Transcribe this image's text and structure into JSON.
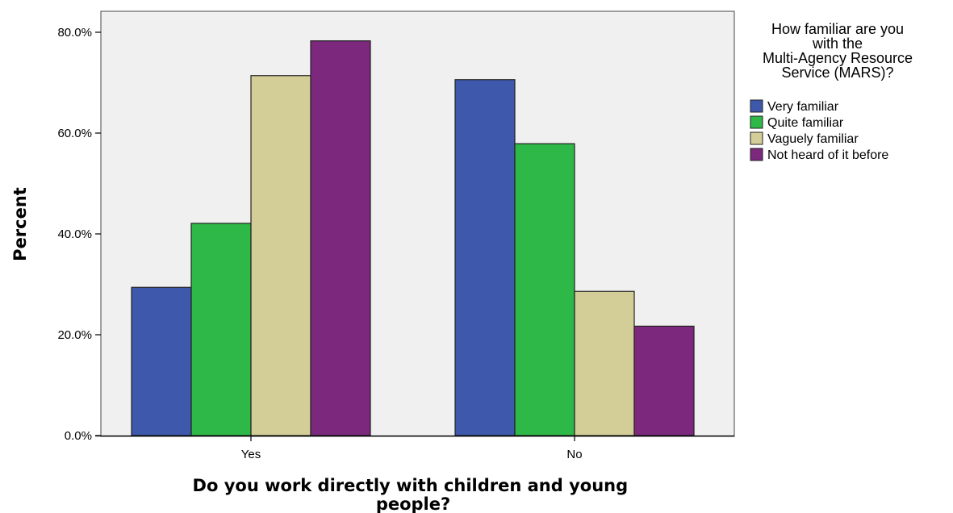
{
  "chart_data": {
    "type": "bar",
    "categories": [
      "Yes",
      "No"
    ],
    "xlabel": "Do you work directly with children and young people?",
    "ylabel": "Percent",
    "ylim": [
      0,
      80
    ],
    "yticks": [
      "0.0%",
      "20.0%",
      "40.0%",
      "60.0%",
      "80.0%"
    ],
    "legend_title": "How familiar are you with the Multi-Agency Resource Service (MARS)?",
    "legend_position": "right",
    "grid": false,
    "series": [
      {
        "name": "Very familiar",
        "color": "#3e58ac",
        "values": [
          29.4,
          70.6
        ]
      },
      {
        "name": "Quite familiar",
        "color": "#2eb848",
        "values": [
          42.1,
          57.9
        ]
      },
      {
        "name": "Vaguely familiar",
        "color": "#d3ce97",
        "values": [
          71.4,
          28.6
        ]
      },
      {
        "name": "Not heard of it before",
        "color": "#7b287d",
        "values": [
          78.3,
          21.7
        ]
      }
    ],
    "plot_background": "#f0f0f0"
  }
}
